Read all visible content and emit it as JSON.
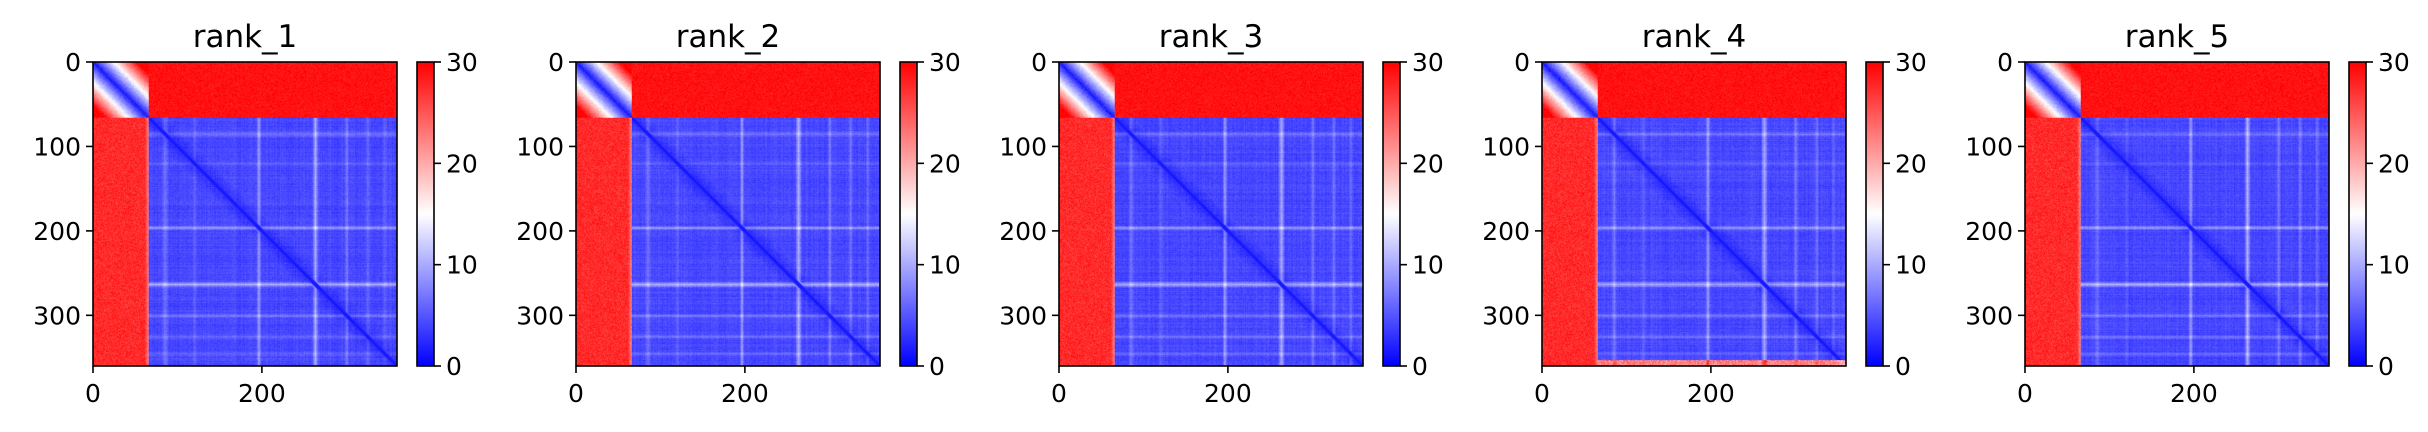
{
  "chart_data": [
    {
      "type": "heatmap",
      "title": "rank_1",
      "pattern": "pae",
      "matrix_size": 360,
      "split_index": 66,
      "xlim": [
        0,
        360
      ],
      "ylim": [
        360,
        0
      ],
      "xticks": [
        0,
        200
      ],
      "yticks": [
        0,
        100,
        200,
        300
      ],
      "colorbar": {
        "range": [
          0,
          30
        ],
        "ticks": [
          0,
          10,
          20,
          30
        ],
        "colormap": "bwr"
      },
      "low_confidence_bottom_rows": false
    },
    {
      "type": "heatmap",
      "title": "rank_2",
      "pattern": "pae",
      "matrix_size": 360,
      "split_index": 66,
      "xlim": [
        0,
        360
      ],
      "ylim": [
        360,
        0
      ],
      "xticks": [
        0,
        200
      ],
      "yticks": [
        0,
        100,
        200,
        300
      ],
      "colorbar": {
        "range": [
          0,
          30
        ],
        "ticks": [
          0,
          10,
          20,
          30
        ],
        "colormap": "bwr"
      },
      "low_confidence_bottom_rows": false
    },
    {
      "type": "heatmap",
      "title": "rank_3",
      "pattern": "pae",
      "matrix_size": 360,
      "split_index": 66,
      "xlim": [
        0,
        360
      ],
      "ylim": [
        360,
        0
      ],
      "xticks": [
        0,
        200
      ],
      "yticks": [
        0,
        100,
        200,
        300
      ],
      "colorbar": {
        "range": [
          0,
          30
        ],
        "ticks": [
          0,
          10,
          20,
          30
        ],
        "colormap": "bwr"
      },
      "low_confidence_bottom_rows": false
    },
    {
      "type": "heatmap",
      "title": "rank_4",
      "pattern": "pae",
      "matrix_size": 360,
      "split_index": 66,
      "xlim": [
        0,
        360
      ],
      "ylim": [
        360,
        0
      ],
      "xticks": [
        0,
        200
      ],
      "yticks": [
        0,
        100,
        200,
        300
      ],
      "colorbar": {
        "range": [
          0,
          30
        ],
        "ticks": [
          0,
          10,
          20,
          30
        ],
        "colormap": "bwr"
      },
      "low_confidence_bottom_rows": true
    },
    {
      "type": "heatmap",
      "title": "rank_5",
      "pattern": "pae",
      "matrix_size": 360,
      "split_index": 66,
      "xlim": [
        0,
        360
      ],
      "ylim": [
        360,
        0
      ],
      "xticks": [
        0,
        200
      ],
      "yticks": [
        0,
        100,
        200,
        300
      ],
      "colorbar": {
        "range": [
          0,
          30
        ],
        "ticks": [
          0,
          10,
          20,
          30
        ],
        "colormap": "bwr"
      },
      "low_confidence_bottom_rows": false
    }
  ]
}
